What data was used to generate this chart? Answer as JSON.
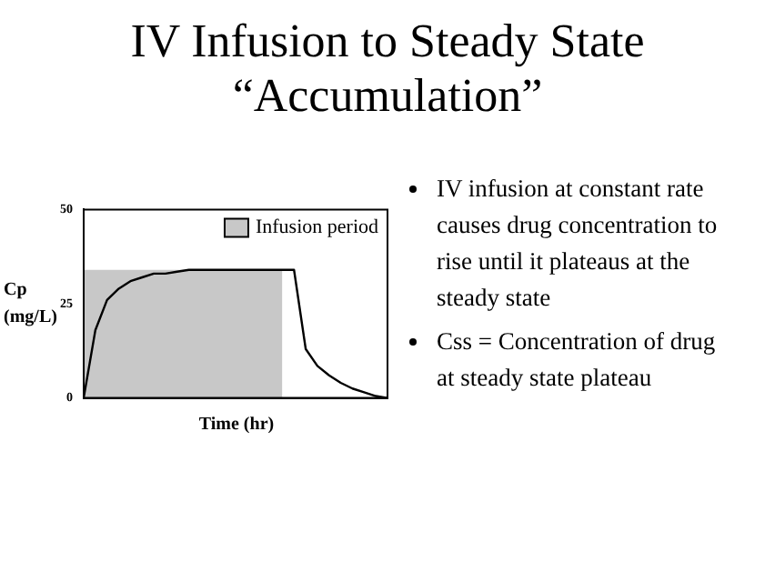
{
  "chart_data": {
    "type": "line",
    "title": "IV Infusion to Steady State",
    "subtitle": "“Accumulation”",
    "xlabel": "Time (hr)",
    "ylabel": "Cp (mg/L)",
    "categories": [
      null,
      null,
      null,
      null,
      null,
      null,
      null,
      null,
      null,
      null,
      null,
      null,
      null,
      null,
      null,
      null,
      null,
      null,
      null,
      null,
      null,
      null,
      null,
      null,
      null,
      null,
      null
    ],
    "series": [
      {
        "name": "Infusion period",
        "type": "area",
        "color": "#c8c8c8",
        "values": [
          34,
          34,
          34,
          34,
          34,
          34,
          34,
          34,
          34,
          34,
          34,
          34,
          34,
          34,
          34,
          34,
          34,
          34,
          null,
          null,
          null,
          null,
          null,
          null,
          null,
          null,
          null
        ]
      },
      {
        "color": "#000000",
        "values": [
          0,
          18,
          26,
          29,
          31,
          32,
          33,
          33,
          33.5,
          34,
          34,
          34,
          34,
          34,
          34,
          34,
          34,
          34,
          34,
          13,
          8.5,
          6,
          4,
          2.5,
          1.5,
          0.5,
          0
        ]
      }
    ],
    "ylim": [
      0,
      50
    ],
    "yticks": [
      0,
      25,
      50
    ],
    "tick_labels": "y",
    "grid": false,
    "legend": "top right",
    "marker": "none",
    "line_style": "solid",
    "annotations": [
      "IV infusion at constant rate causes drug concentration to rise until it plateaus at the steady state",
      "Css = Concentration of drug at steady state plateau"
    ]
  }
}
